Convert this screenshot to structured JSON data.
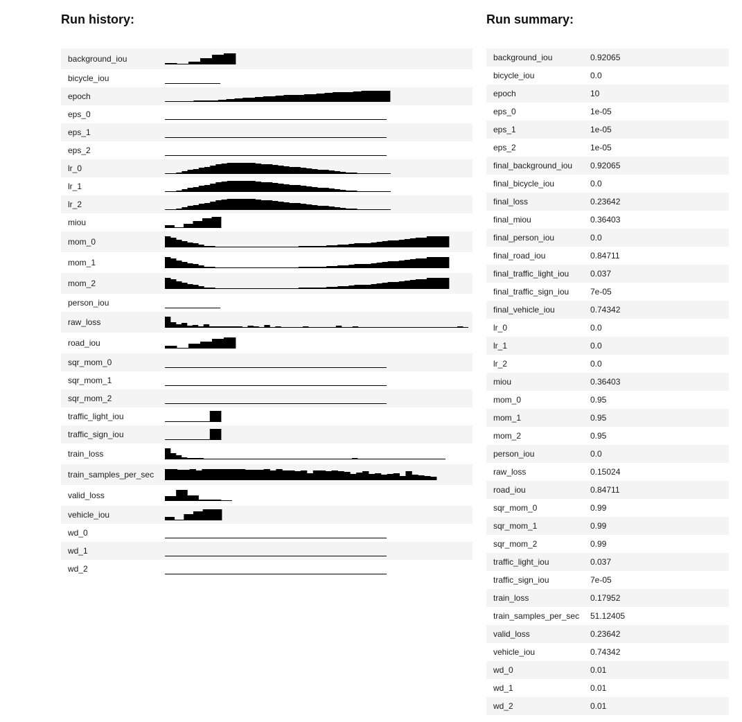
{
  "history_title": "Run history:",
  "summary_title": "Run summary:",
  "history": [
    {
      "name": "background_iou",
      "values": [
        0.1,
        0.05,
        0.25,
        0.55,
        0.85,
        1.0
      ]
    },
    {
      "name": "bicycle_iou",
      "values": [
        0,
        0,
        0,
        0,
        0,
        0
      ]
    },
    {
      "name": "epoch",
      "values": [
        0.0,
        0.0,
        0.0,
        0.0,
        0.05,
        0.05,
        0.05,
        0.1,
        0.1,
        0.1,
        0.15,
        0.15,
        0.15,
        0.2,
        0.2,
        0.25,
        0.25,
        0.3,
        0.3,
        0.35,
        0.35,
        0.4,
        0.45,
        0.45,
        0.5,
        0.5,
        0.5,
        0.55,
        0.55,
        0.6,
        0.6,
        0.6,
        0.65,
        0.65,
        0.7,
        0.7,
        0.7,
        0.75,
        0.75,
        0.8,
        0.8,
        0.85,
        0.85,
        0.9,
        0.9,
        0.9,
        0.95,
        0.95,
        1.0,
        1.0,
        1.0,
        1.0,
        1.0,
        1.0,
        1.0
      ]
    },
    {
      "name": "eps_0",
      "values": [
        0,
        0,
        0,
        0,
        0,
        0
      ]
    },
    {
      "name": "eps_1",
      "values": [
        0,
        0,
        0,
        0,
        0,
        0
      ]
    },
    {
      "name": "eps_2",
      "values": [
        0,
        0,
        0,
        0,
        0,
        0
      ]
    },
    {
      "name": "lr_0",
      "values": [
        0.0,
        0.05,
        0.15,
        0.25,
        0.35,
        0.45,
        0.55,
        0.65,
        0.75,
        0.85,
        0.95,
        1.0,
        1.0,
        1.0,
        1.0,
        1.0,
        0.95,
        0.9,
        0.85,
        0.8,
        0.75,
        0.7,
        0.65,
        0.6,
        0.55,
        0.5,
        0.45,
        0.4,
        0.35,
        0.3,
        0.25,
        0.2,
        0.15,
        0.1,
        0.05,
        0.0,
        0.0,
        0.0,
        0.0,
        0.0
      ]
    },
    {
      "name": "lr_1",
      "values": [
        0.0,
        0.05,
        0.15,
        0.25,
        0.35,
        0.45,
        0.55,
        0.65,
        0.75,
        0.85,
        0.95,
        1.0,
        1.0,
        1.0,
        1.0,
        1.0,
        0.95,
        0.9,
        0.85,
        0.8,
        0.75,
        0.7,
        0.65,
        0.6,
        0.55,
        0.5,
        0.45,
        0.4,
        0.35,
        0.3,
        0.25,
        0.2,
        0.15,
        0.1,
        0.05,
        0.0,
        0.0,
        0.0,
        0.0,
        0.0
      ]
    },
    {
      "name": "lr_2",
      "values": [
        0.0,
        0.05,
        0.15,
        0.25,
        0.35,
        0.45,
        0.55,
        0.65,
        0.75,
        0.85,
        0.95,
        1.0,
        1.0,
        1.0,
        1.0,
        1.0,
        0.95,
        0.9,
        0.85,
        0.8,
        0.75,
        0.7,
        0.65,
        0.6,
        0.55,
        0.5,
        0.45,
        0.4,
        0.35,
        0.3,
        0.25,
        0.2,
        0.15,
        0.1,
        0.05,
        0.0,
        0.0,
        0.0,
        0.0,
        0.0
      ]
    },
    {
      "name": "miou",
      "values": [
        0.25,
        0.05,
        0.35,
        0.6,
        0.9,
        1.0
      ]
    },
    {
      "name": "mom_0",
      "values": [
        1.0,
        0.85,
        0.7,
        0.55,
        0.45,
        0.35,
        0.25,
        0.15,
        0.1,
        0.05,
        0.0,
        0.0,
        0.0,
        0.0,
        0.0,
        0.0,
        0.0,
        0.0,
        0.0,
        0.05,
        0.05,
        0.05,
        0.05,
        0.05,
        0.1,
        0.1,
        0.1,
        0.15,
        0.15,
        0.2,
        0.2,
        0.25,
        0.25,
        0.3,
        0.35,
        0.35,
        0.4,
        0.45,
        0.5,
        0.55,
        0.6,
        0.65,
        0.7,
        0.75,
        0.8,
        0.85,
        0.9,
        1.0,
        1.0,
        1.0,
        1.0
      ]
    },
    {
      "name": "mom_1",
      "values": [
        1.0,
        0.85,
        0.7,
        0.55,
        0.45,
        0.35,
        0.25,
        0.15,
        0.1,
        0.05,
        0.0,
        0.0,
        0.0,
        0.0,
        0.0,
        0.0,
        0.0,
        0.0,
        0.0,
        0.05,
        0.05,
        0.05,
        0.05,
        0.05,
        0.1,
        0.1,
        0.1,
        0.15,
        0.15,
        0.2,
        0.2,
        0.25,
        0.25,
        0.3,
        0.35,
        0.35,
        0.4,
        0.45,
        0.5,
        0.55,
        0.6,
        0.65,
        0.7,
        0.75,
        0.8,
        0.85,
        0.9,
        1.0,
        1.0,
        1.0,
        1.0
      ]
    },
    {
      "name": "mom_2",
      "values": [
        1.0,
        0.85,
        0.7,
        0.55,
        0.45,
        0.35,
        0.25,
        0.15,
        0.1,
        0.05,
        0.0,
        0.0,
        0.0,
        0.0,
        0.0,
        0.0,
        0.0,
        0.0,
        0.0,
        0.05,
        0.05,
        0.05,
        0.05,
        0.05,
        0.1,
        0.1,
        0.1,
        0.15,
        0.15,
        0.2,
        0.2,
        0.25,
        0.25,
        0.3,
        0.35,
        0.35,
        0.4,
        0.45,
        0.5,
        0.55,
        0.6,
        0.65,
        0.7,
        0.75,
        0.8,
        0.85,
        0.9,
        1.0,
        1.0,
        1.0,
        1.0
      ]
    },
    {
      "name": "person_iou",
      "values": [
        0,
        0,
        0,
        0,
        0,
        0
      ]
    },
    {
      "name": "raw_loss",
      "values": [
        1.0,
        0.5,
        0.3,
        0.45,
        0.2,
        0.25,
        0.15,
        0.3,
        0.15,
        0.1,
        0.15,
        0.1,
        0.1,
        0.15,
        0.05,
        0.2,
        0.1,
        0.05,
        0.25,
        0.05,
        0.1,
        0.0,
        0.05,
        0.05,
        0.05,
        0.15,
        0.05,
        0.0,
        0.0,
        0.05,
        0.05,
        0.2,
        0.0,
        0.0,
        0.1,
        0.0,
        0.0,
        0.05,
        0.05,
        0.05,
        0.0,
        0.05,
        0.0,
        0.0,
        0.0,
        0.0,
        0.0,
        0.0,
        0.0,
        0.0,
        0.0,
        0.0,
        0.0,
        0.1,
        0.0
      ]
    },
    {
      "name": "road_iou",
      "values": [
        0.25,
        0.05,
        0.45,
        0.6,
        0.85,
        1.0
      ]
    },
    {
      "name": "sqr_mom_0",
      "values": [
        0,
        0,
        0,
        0,
        0,
        0
      ]
    },
    {
      "name": "sqr_mom_1",
      "values": [
        0,
        0,
        0,
        0,
        0,
        0
      ]
    },
    {
      "name": "sqr_mom_2",
      "values": [
        0,
        0,
        0,
        0,
        0,
        0
      ]
    },
    {
      "name": "traffic_light_iou",
      "values": [
        0,
        0,
        0,
        0,
        0,
        0,
        0,
        0,
        1.0,
        1.0
      ]
    },
    {
      "name": "traffic_sign_iou",
      "values": [
        0,
        0,
        0,
        0,
        0,
        0,
        0,
        0,
        1.0,
        1.0
      ]
    },
    {
      "name": "train_loss",
      "values": [
        1.0,
        0.55,
        0.35,
        0.2,
        0.15,
        0.15,
        0.1,
        0.05,
        0.05,
        0.05,
        0.05,
        0.05,
        0.05,
        0.05,
        0.05,
        0.05,
        0.05,
        0.05,
        0.05,
        0.05,
        0.05,
        0.05,
        0.05,
        0.05,
        0.05,
        0.05,
        0.05,
        0.05,
        0.05,
        0.05,
        0.05,
        0.05,
        0.0,
        0.05,
        0.15,
        0.0,
        0.0,
        0.0,
        0.0,
        0.0,
        0.0,
        0.0,
        0.0,
        0.0,
        0.0,
        0.0,
        0.0,
        0.0,
        0.0,
        0.0,
        0.0
      ]
    },
    {
      "name": "train_samples_per_sec",
      "values": [
        1.0,
        1.0,
        0.95,
        0.95,
        1.0,
        0.85,
        1.0,
        1.0,
        1.0,
        1.0,
        1.0,
        1.0,
        1.0,
        0.95,
        0.95,
        0.95,
        1.0,
        0.9,
        1.0,
        0.85,
        0.9,
        0.8,
        0.9,
        0.65,
        0.9,
        0.85,
        0.8,
        0.85,
        0.8,
        0.75,
        0.55,
        0.7,
        0.8,
        0.55,
        0.6,
        0.5,
        0.55,
        0.6,
        0.4,
        0.8,
        0.5,
        0.45,
        0.35,
        0.3
      ]
    },
    {
      "name": "valid_loss",
      "values": [
        0.45,
        1.0,
        0.5,
        0.15,
        0.1,
        0.0
      ]
    },
    {
      "name": "vehicle_iou",
      "values": [
        0.3,
        0.05,
        0.55,
        0.8,
        1.0,
        1.0
      ]
    },
    {
      "name": "wd_0",
      "values": [
        0,
        0,
        0,
        0,
        0,
        0
      ]
    },
    {
      "name": "wd_1",
      "values": [
        0,
        0,
        0,
        0,
        0,
        0
      ]
    },
    {
      "name": "wd_2",
      "values": [
        0,
        0,
        0,
        0,
        0,
        0
      ]
    }
  ],
  "summary": [
    {
      "key": "background_iou",
      "value": "0.92065"
    },
    {
      "key": "bicycle_iou",
      "value": "0.0"
    },
    {
      "key": "epoch",
      "value": "10"
    },
    {
      "key": "eps_0",
      "value": "1e-05"
    },
    {
      "key": "eps_1",
      "value": "1e-05"
    },
    {
      "key": "eps_2",
      "value": "1e-05"
    },
    {
      "key": "final_background_iou",
      "value": "0.92065"
    },
    {
      "key": "final_bicycle_iou",
      "value": "0.0"
    },
    {
      "key": "final_loss",
      "value": "0.23642"
    },
    {
      "key": "final_miou",
      "value": "0.36403"
    },
    {
      "key": "final_person_iou",
      "value": "0.0"
    },
    {
      "key": "final_road_iou",
      "value": "0.84711"
    },
    {
      "key": "final_traffic_light_iou",
      "value": "0.037"
    },
    {
      "key": "final_traffic_sign_iou",
      "value": "7e-05"
    },
    {
      "key": "final_vehicle_iou",
      "value": "0.74342"
    },
    {
      "key": "lr_0",
      "value": "0.0"
    },
    {
      "key": "lr_1",
      "value": "0.0"
    },
    {
      "key": "lr_2",
      "value": "0.0"
    },
    {
      "key": "miou",
      "value": "0.36403"
    },
    {
      "key": "mom_0",
      "value": "0.95"
    },
    {
      "key": "mom_1",
      "value": "0.95"
    },
    {
      "key": "mom_2",
      "value": "0.95"
    },
    {
      "key": "person_iou",
      "value": "0.0"
    },
    {
      "key": "raw_loss",
      "value": "0.15024"
    },
    {
      "key": "road_iou",
      "value": "0.84711"
    },
    {
      "key": "sqr_mom_0",
      "value": "0.99"
    },
    {
      "key": "sqr_mom_1",
      "value": "0.99"
    },
    {
      "key": "sqr_mom_2",
      "value": "0.99"
    },
    {
      "key": "traffic_light_iou",
      "value": "0.037"
    },
    {
      "key": "traffic_sign_iou",
      "value": "7e-05"
    },
    {
      "key": "train_loss",
      "value": "0.17952"
    },
    {
      "key": "train_samples_per_sec",
      "value": "51.12405"
    },
    {
      "key": "valid_loss",
      "value": "0.23642"
    },
    {
      "key": "vehicle_iou",
      "value": "0.74342"
    },
    {
      "key": "wd_0",
      "value": "0.01"
    },
    {
      "key": "wd_1",
      "value": "0.01"
    },
    {
      "key": "wd_2",
      "value": "0.01"
    }
  ],
  "colors": {
    "row_stripe": "#f4f4f4",
    "bar": "#000000",
    "baseline": "#000000",
    "text": "#1b1b1b"
  }
}
